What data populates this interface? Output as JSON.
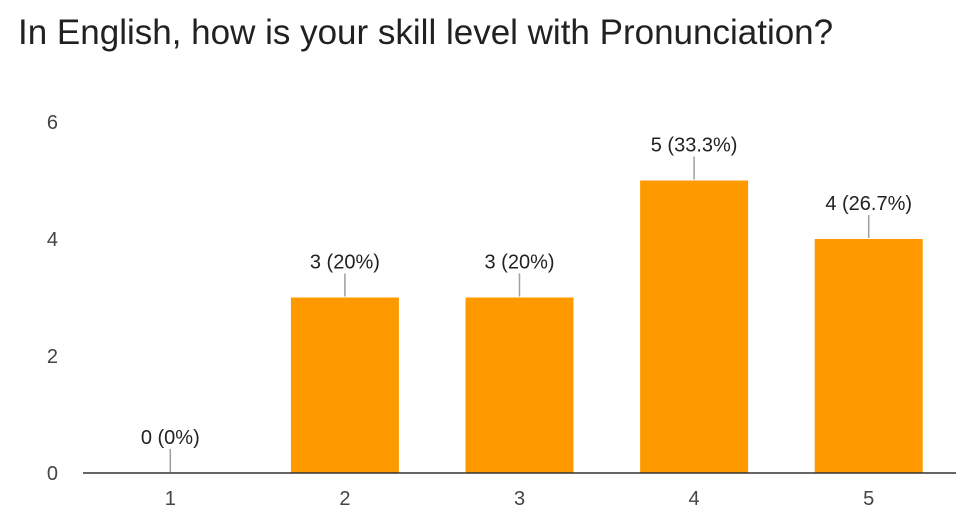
{
  "colors": {
    "bar": "#ff9900",
    "axis": "#333333",
    "leader": "#9e9e9e",
    "title": "#212121"
  },
  "chart_data": {
    "type": "bar",
    "title": "In English, how is your skill level with Pronunciation?",
    "xlabel": "",
    "ylabel": "",
    "categories": [
      "1",
      "2",
      "3",
      "4",
      "5"
    ],
    "values": [
      0,
      3,
      3,
      5,
      4
    ],
    "data_labels": [
      "0 (0%)",
      "3 (20%)",
      "3 (20%)",
      "5 (33.3%)",
      "4 (26.7%)"
    ],
    "y_ticks": [
      0,
      2,
      4,
      6
    ],
    "ylim": [
      0,
      6
    ],
    "grid": false,
    "legend": "none"
  }
}
